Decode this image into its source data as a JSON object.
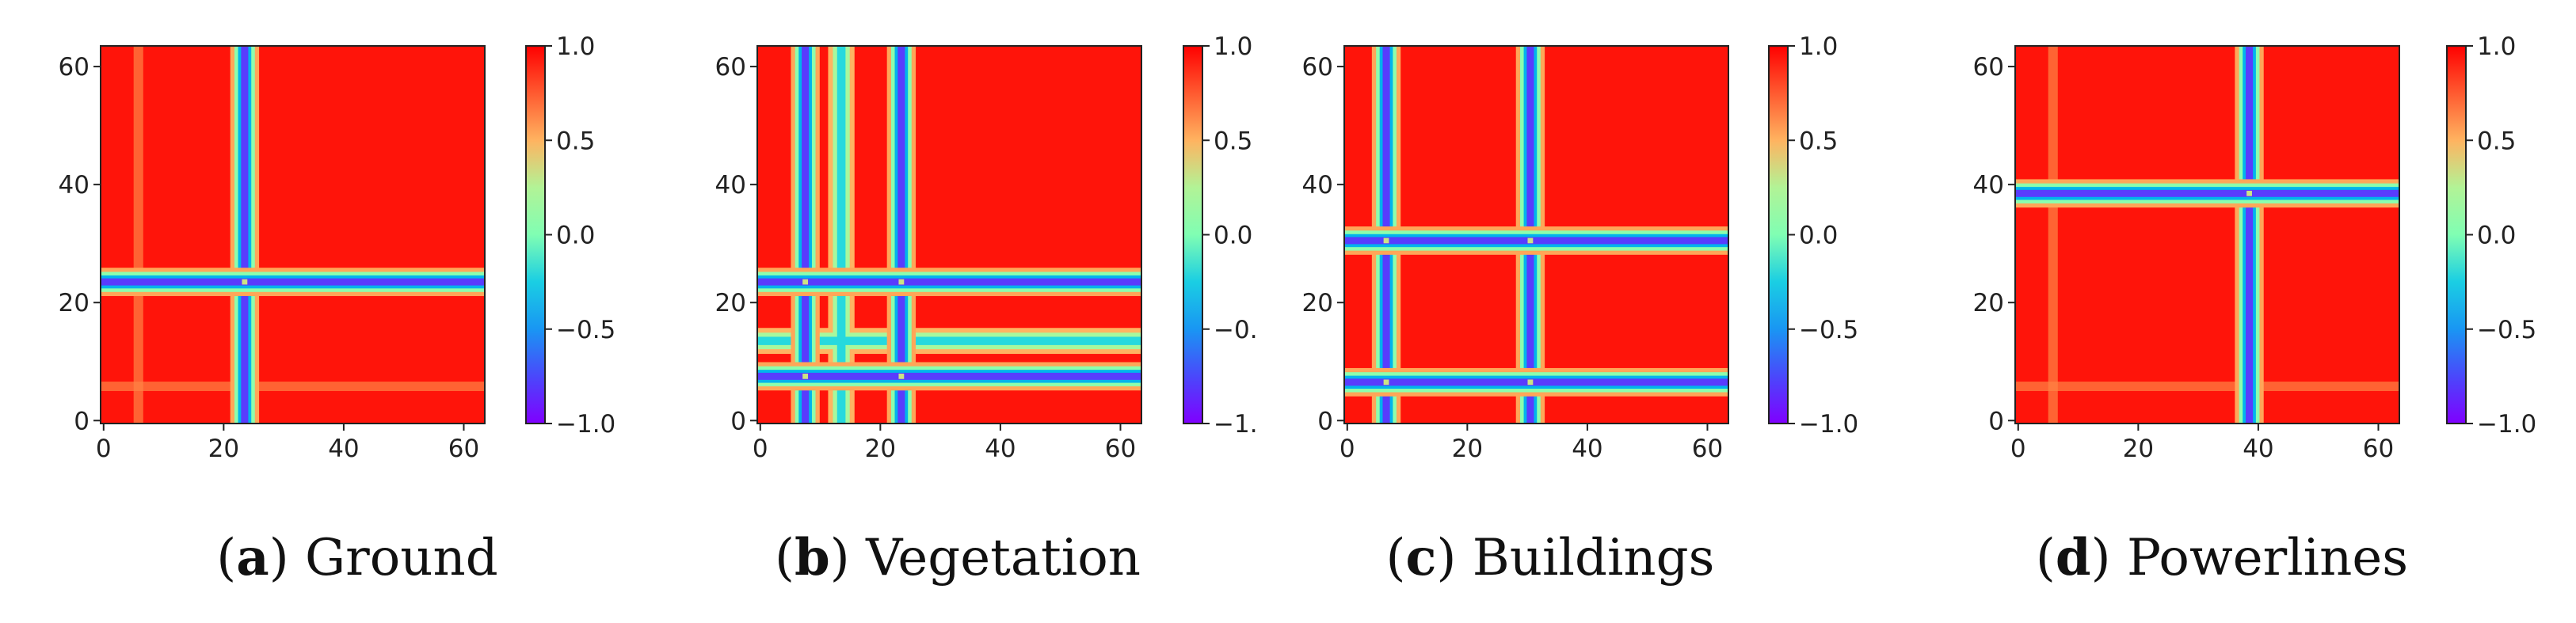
{
  "figure": {
    "panels": [
      {
        "letter": "a",
        "name": "Ground",
        "chart_data": {
          "type": "heatmap",
          "title": "(a) Ground",
          "size": 64,
          "x_ticks": [
            "0",
            "20",
            "40",
            "60"
          ],
          "y_ticks": [
            "0",
            "20",
            "40",
            "60"
          ],
          "xlim": [
            0,
            63
          ],
          "ylim": [
            0,
            63
          ],
          "colorbar_ticks": [
            "1.0",
            "0.5",
            "0.0",
            "−0.5",
            "−1.0"
          ],
          "colorbar_range": [
            -1.0,
            1.0
          ],
          "colormap": "rainbow",
          "low_lines": [
            24
          ],
          "faint_lines": [
            6
          ],
          "typical_value": 0.95
        }
      },
      {
        "letter": "b",
        "name": "Vegetation",
        "chart_data": {
          "type": "heatmap",
          "title": "(b) Vegetation",
          "size": 64,
          "x_ticks": [
            "0",
            "20",
            "40",
            "60"
          ],
          "y_ticks": [
            "0",
            "20",
            "40",
            "60"
          ],
          "xlim": [
            0,
            63
          ],
          "ylim": [
            0,
            63
          ],
          "colorbar_ticks": [
            "1.0",
            "0.5",
            "0.0",
            "−0.",
            "−1."
          ],
          "colorbar_range": [
            -1.0,
            1.0
          ],
          "colormap": "rainbow",
          "low_lines": [
            8,
            24
          ],
          "mid_lines": [
            14
          ],
          "faint_lines": [],
          "typical_value": 0.95
        }
      },
      {
        "letter": "c",
        "name": "Buildings",
        "chart_data": {
          "type": "heatmap",
          "title": "(c) Buildings",
          "size": 64,
          "x_ticks": [
            "0",
            "20",
            "40",
            "60"
          ],
          "y_ticks": [
            "0",
            "20",
            "40",
            "60"
          ],
          "xlim": [
            0,
            63
          ],
          "ylim": [
            0,
            63
          ],
          "colorbar_ticks": [
            "1.0",
            "0.5",
            "0.0",
            "−0.5",
            "−1.0"
          ],
          "colorbar_range": [
            -1.0,
            1.0
          ],
          "colormap": "rainbow",
          "low_lines": [
            7,
            31
          ],
          "faint_lines": [],
          "typical_value": 0.95
        }
      },
      {
        "letter": "d",
        "name": "Powerlines",
        "chart_data": {
          "type": "heatmap",
          "title": "(d) Powerlines",
          "size": 64,
          "x_ticks": [
            "0",
            "20",
            "40",
            "60"
          ],
          "y_ticks": [
            "0",
            "20",
            "40",
            "60"
          ],
          "xlim": [
            0,
            63
          ],
          "ylim": [
            0,
            63
          ],
          "colorbar_ticks": [
            "1.0",
            "0.5",
            "0.0",
            "−0.5",
            "−1.0"
          ],
          "colorbar_range": [
            -1.0,
            1.0
          ],
          "colormap": "rainbow",
          "low_lines": [
            39
          ],
          "faint_lines": [
            6
          ],
          "typical_value": 0.95
        }
      }
    ]
  }
}
